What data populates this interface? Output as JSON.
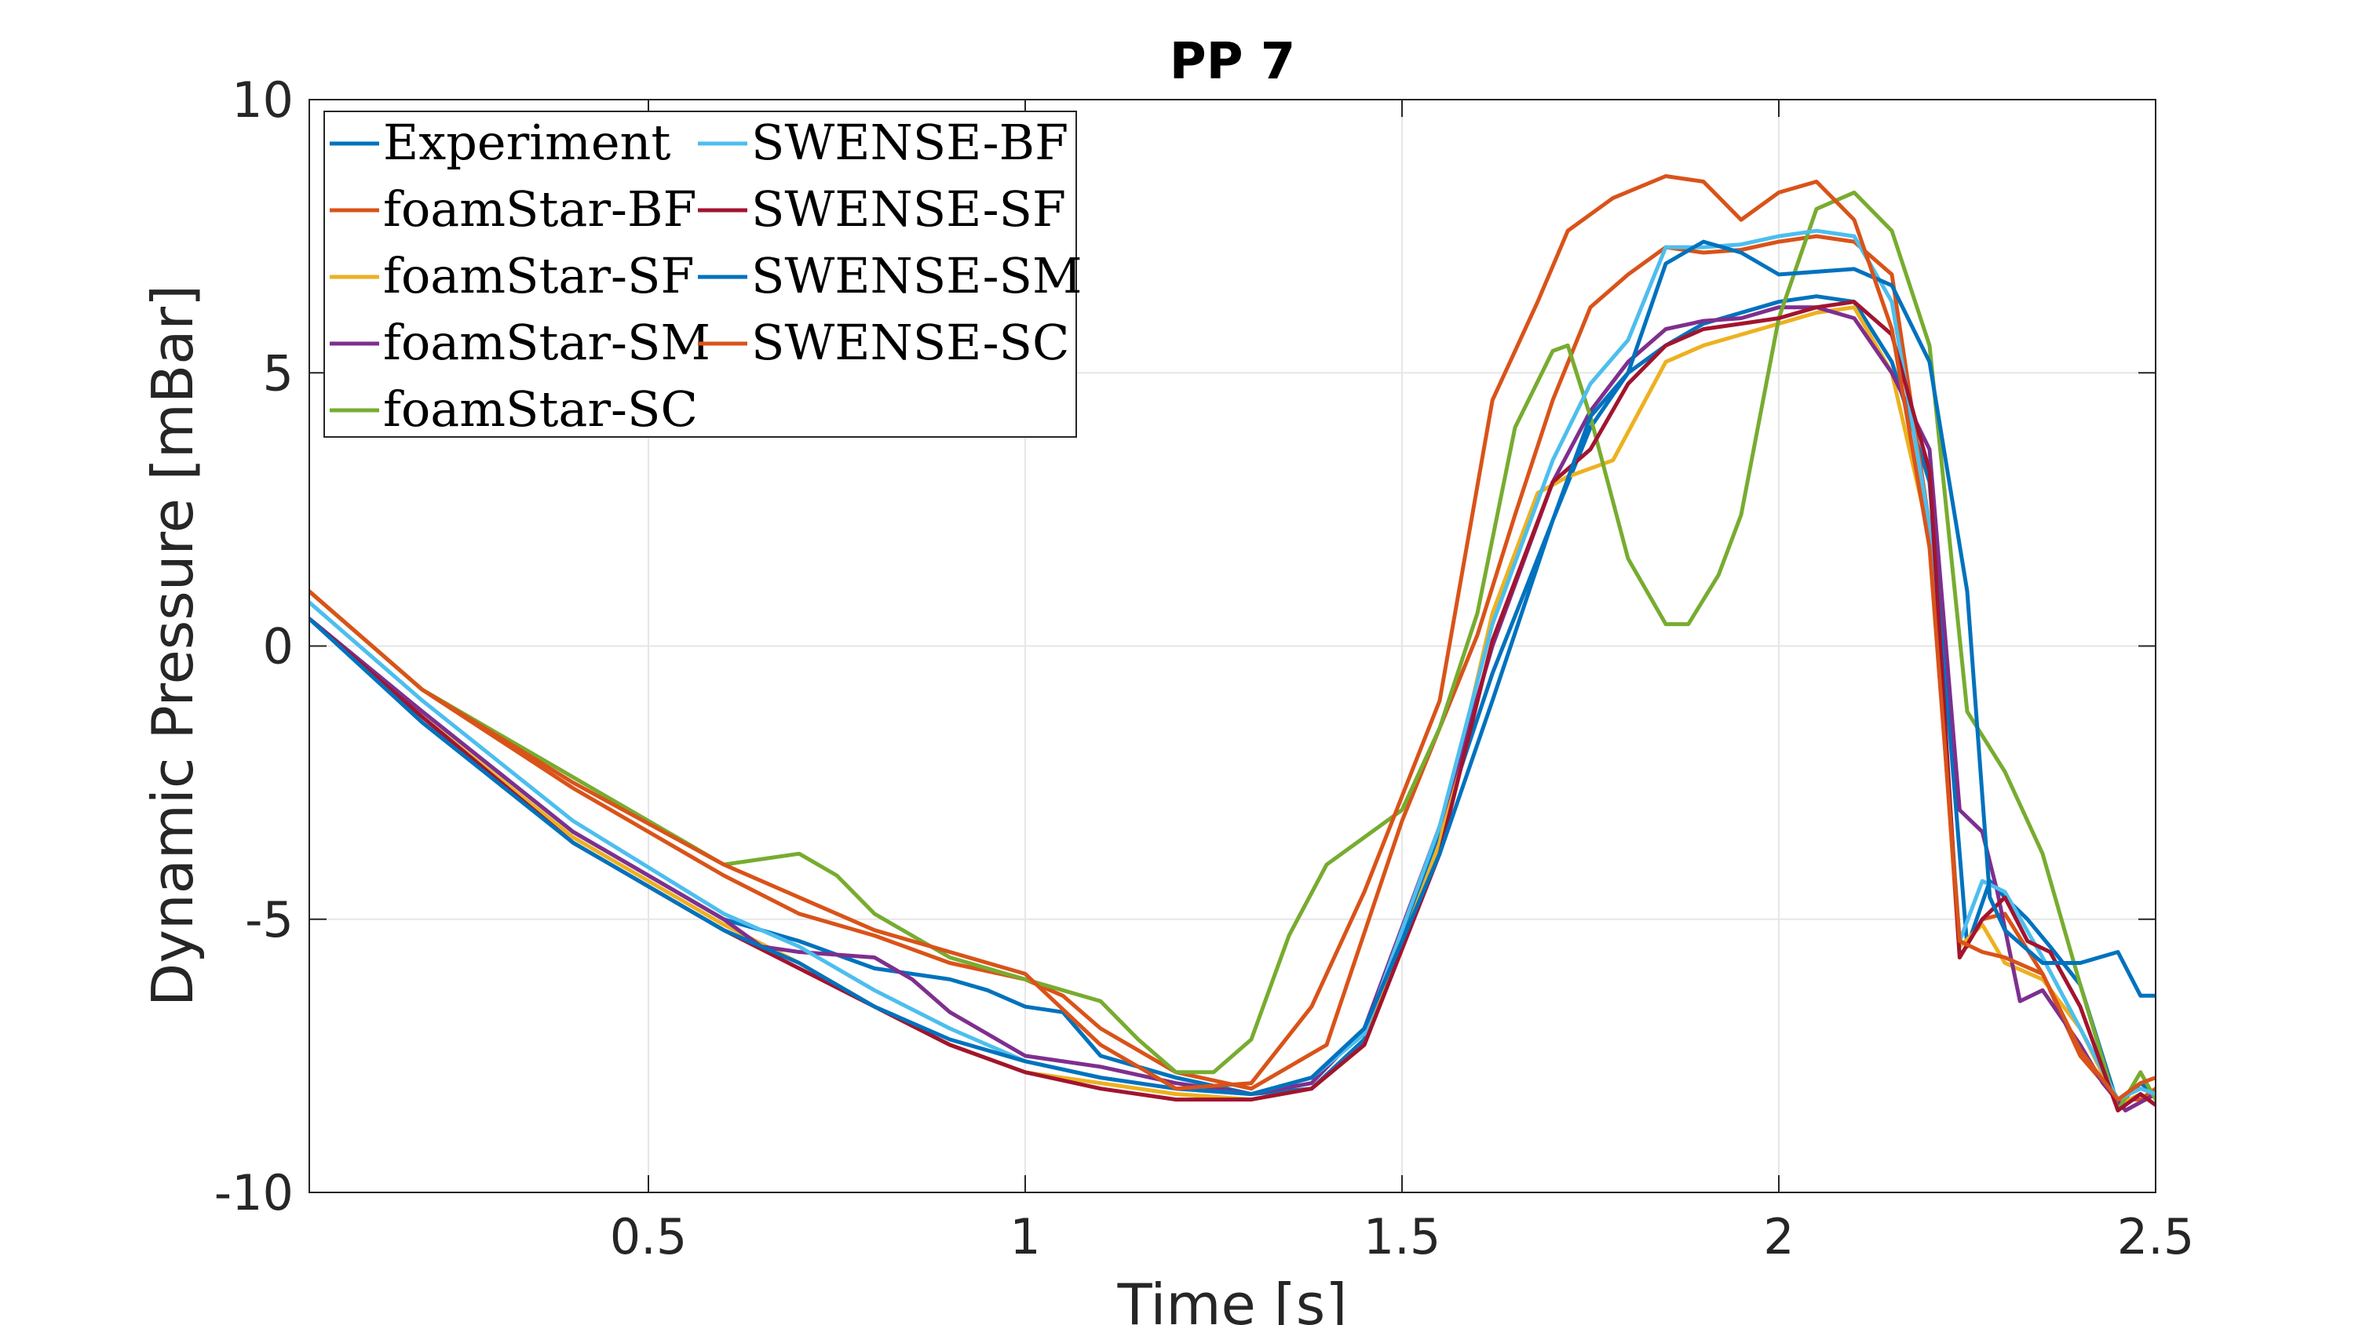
{
  "chart_data": {
    "type": "line",
    "title": "PP 7",
    "xlabel": "Time [s]",
    "ylabel": "Dynamic Pressure [mBar]",
    "xlim": [
      0.05,
      2.5
    ],
    "ylim": [
      -10,
      10
    ],
    "xticks": [
      0.5,
      1,
      1.5,
      2,
      2.5
    ],
    "xtick_labels": [
      "0.5",
      "1",
      "1.5",
      "2",
      "2.5"
    ],
    "yticks": [
      -10,
      -5,
      0,
      5,
      10
    ],
    "ytick_labels": [
      "-10",
      "-5",
      "0",
      "5",
      "10"
    ],
    "grid": true,
    "legend_position": "top-left",
    "legend_columns": 2,
    "series": [
      {
        "name": "Experiment",
        "color": "#0072BD",
        "x": [
          0.05,
          0.2,
          0.4,
          0.6,
          0.7,
          0.8,
          0.9,
          0.95,
          1.0,
          1.05,
          1.1,
          1.2,
          1.3,
          1.38,
          1.45,
          1.55,
          1.62,
          1.7,
          1.75,
          1.8,
          1.85,
          1.9,
          1.95,
          2.0,
          2.05,
          2.1,
          2.15,
          2.2,
          2.25,
          2.28,
          2.3,
          2.33,
          2.36,
          2.4,
          2.45,
          2.48,
          2.5
        ],
        "y": [
          0.5,
          -1.2,
          -3.4,
          -5.0,
          -5.4,
          -5.9,
          -6.1,
          -6.3,
          -6.6,
          -6.7,
          -7.5,
          -7.9,
          -8.2,
          -8.1,
          -7.2,
          -3.4,
          -0.5,
          2.3,
          4.0,
          5.0,
          5.5,
          5.9,
          6.1,
          6.3,
          6.4,
          6.3,
          5.2,
          3.0,
          -5.5,
          -4.3,
          -4.6,
          -5.0,
          -5.5,
          -6.2,
          -8.4,
          -8.0,
          -8.2
        ]
      },
      {
        "name": "foamStar-BF",
        "color": "#D95319",
        "x": [
          0.05,
          0.2,
          0.4,
          0.6,
          0.7,
          0.8,
          0.9,
          1.0,
          1.05,
          1.1,
          1.2,
          1.3,
          1.4,
          1.5,
          1.6,
          1.65,
          1.7,
          1.75,
          1.8,
          1.85,
          1.9,
          1.95,
          2.0,
          2.05,
          2.1,
          2.15,
          2.2,
          2.24,
          2.27,
          2.3,
          2.35,
          2.4,
          2.45,
          2.48,
          2.5
        ],
        "y": [
          1.0,
          -0.8,
          -2.6,
          -4.2,
          -4.9,
          -5.3,
          -5.8,
          -6.1,
          -6.4,
          -7.0,
          -7.8,
          -8.1,
          -7.3,
          -3.2,
          0.2,
          2.4,
          4.5,
          6.2,
          6.8,
          7.3,
          7.2,
          7.25,
          7.4,
          7.5,
          7.4,
          6.8,
          2.2,
          -5.7,
          -5.0,
          -4.9,
          -6.0,
          -7.5,
          -8.3,
          -8.3,
          -8.1
        ]
      },
      {
        "name": "foamStar-SF",
        "color": "#EDB120",
        "x": [
          0.05,
          0.2,
          0.4,
          0.6,
          0.7,
          0.8,
          0.9,
          1.0,
          1.1,
          1.2,
          1.3,
          1.38,
          1.45,
          1.55,
          1.62,
          1.68,
          1.72,
          1.78,
          1.85,
          1.9,
          1.95,
          2.0,
          2.05,
          2.1,
          2.15,
          2.2,
          2.24,
          2.27,
          2.3,
          2.35,
          2.4,
          2.45,
          2.48,
          2.5
        ],
        "y": [
          0.5,
          -1.3,
          -3.5,
          -5.1,
          -5.8,
          -6.6,
          -7.3,
          -7.8,
          -8.0,
          -8.2,
          -8.3,
          -8.1,
          -7.3,
          -3.6,
          0.6,
          2.8,
          3.1,
          3.4,
          5.2,
          5.5,
          5.7,
          5.9,
          6.1,
          6.2,
          5.0,
          2.0,
          -5.5,
          -5.1,
          -5.8,
          -6.1,
          -7.0,
          -8.4,
          -8.2,
          -8.4
        ]
      },
      {
        "name": "foamStar-SM",
        "color": "#7E2F8E",
        "x": [
          0.05,
          0.2,
          0.4,
          0.6,
          0.65,
          0.7,
          0.8,
          0.85,
          0.9,
          0.95,
          1.0,
          1.1,
          1.2,
          1.3,
          1.38,
          1.45,
          1.55,
          1.62,
          1.7,
          1.75,
          1.8,
          1.85,
          1.9,
          1.95,
          2.0,
          2.05,
          2.1,
          2.15,
          2.2,
          2.24,
          2.27,
          2.29,
          2.32,
          2.35,
          2.4,
          2.43,
          2.46,
          2.5
        ],
        "y": [
          0.5,
          -1.2,
          -3.4,
          -5.0,
          -5.5,
          -5.6,
          -5.7,
          -6.1,
          -6.7,
          -7.1,
          -7.5,
          -7.7,
          -8.0,
          -8.2,
          -8.0,
          -7.0,
          -3.3,
          0.0,
          3.0,
          4.3,
          5.2,
          5.8,
          5.95,
          6.0,
          6.2,
          6.2,
          6.0,
          5.0,
          3.6,
          -3.0,
          -3.4,
          -4.5,
          -6.5,
          -6.3,
          -7.3,
          -8.0,
          -8.5,
          -8.2
        ]
      },
      {
        "name": "foamStar-SC",
        "color": "#77AC30",
        "x": [
          0.05,
          0.2,
          0.4,
          0.6,
          0.7,
          0.75,
          0.8,
          0.9,
          1.0,
          1.05,
          1.1,
          1.15,
          1.2,
          1.25,
          1.3,
          1.35,
          1.4,
          1.45,
          1.5,
          1.55,
          1.6,
          1.65,
          1.7,
          1.72,
          1.75,
          1.8,
          1.85,
          1.88,
          1.92,
          1.95,
          2.0,
          2.05,
          2.1,
          2.15,
          2.2,
          2.25,
          2.3,
          2.35,
          2.4,
          2.45,
          2.48,
          2.5
        ],
        "y": [
          1.0,
          -0.8,
          -2.4,
          -4.0,
          -3.8,
          -4.2,
          -4.9,
          -5.7,
          -6.1,
          -6.3,
          -6.5,
          -7.2,
          -7.8,
          -7.8,
          -7.2,
          -5.3,
          -4.0,
          -3.5,
          -3.0,
          -1.5,
          0.6,
          4.0,
          5.4,
          5.5,
          4.2,
          1.6,
          0.4,
          0.4,
          1.3,
          2.4,
          6.0,
          8.0,
          8.3,
          7.6,
          5.5,
          -1.2,
          -2.3,
          -3.8,
          -6.2,
          -8.5,
          -7.8,
          -8.3
        ]
      },
      {
        "name": "SWENSE-BF",
        "color": "#4DBEEE",
        "x": [
          0.05,
          0.2,
          0.4,
          0.6,
          0.7,
          0.8,
          0.9,
          1.0,
          1.1,
          1.2,
          1.3,
          1.38,
          1.45,
          1.55,
          1.62,
          1.7,
          1.75,
          1.8,
          1.85,
          1.9,
          1.95,
          2.0,
          2.05,
          2.1,
          2.15,
          2.2,
          2.24,
          2.27,
          2.3,
          2.35,
          2.4,
          2.45,
          2.48,
          2.5
        ],
        "y": [
          0.8,
          -1.0,
          -3.2,
          -4.9,
          -5.5,
          -6.3,
          -7.0,
          -7.6,
          -7.9,
          -8.1,
          -8.2,
          -7.9,
          -7.1,
          -3.3,
          0.4,
          3.4,
          4.8,
          5.6,
          7.3,
          7.3,
          7.35,
          7.5,
          7.6,
          7.5,
          6.3,
          2.2,
          -5.4,
          -4.3,
          -4.5,
          -5.7,
          -7.0,
          -8.3,
          -8.1,
          -8.2
        ]
      },
      {
        "name": "SWENSE-SF",
        "color": "#A2142F",
        "x": [
          0.05,
          0.2,
          0.4,
          0.6,
          0.7,
          0.8,
          0.9,
          1.0,
          1.1,
          1.2,
          1.3,
          1.38,
          1.45,
          1.55,
          1.62,
          1.7,
          1.75,
          1.8,
          1.85,
          1.9,
          1.95,
          2.0,
          2.05,
          2.1,
          2.15,
          2.2,
          2.24,
          2.27,
          2.3,
          2.33,
          2.36,
          2.4,
          2.45,
          2.48,
          2.5
        ],
        "y": [
          0.5,
          -1.3,
          -3.6,
          -5.2,
          -5.9,
          -6.6,
          -7.3,
          -7.8,
          -8.1,
          -8.3,
          -8.3,
          -8.1,
          -7.3,
          -3.8,
          0.1,
          3.0,
          3.6,
          4.8,
          5.5,
          5.8,
          5.9,
          6.0,
          6.2,
          6.3,
          5.7,
          3.2,
          -5.7,
          -5.0,
          -4.6,
          -5.4,
          -5.6,
          -6.6,
          -8.5,
          -8.2,
          -8.4
        ]
      },
      {
        "name": "SWENSE-SM",
        "color": "#0072BD",
        "x": [
          0.05,
          0.2,
          0.4,
          0.6,
          0.7,
          0.8,
          0.9,
          1.0,
          1.1,
          1.2,
          1.3,
          1.38,
          1.45,
          1.55,
          1.62,
          1.7,
          1.75,
          1.8,
          1.85,
          1.9,
          1.95,
          2.0,
          2.05,
          2.1,
          2.15,
          2.2,
          2.25,
          2.28,
          2.3,
          2.35,
          2.4,
          2.45,
          2.48,
          2.5
        ],
        "y": [
          0.5,
          -1.4,
          -3.6,
          -5.2,
          -5.8,
          -6.6,
          -7.2,
          -7.6,
          -7.9,
          -8.1,
          -8.2,
          -7.9,
          -7.0,
          -3.8,
          -1.0,
          2.3,
          4.2,
          5.0,
          7.0,
          7.4,
          7.2,
          6.8,
          6.85,
          6.9,
          6.6,
          5.2,
          1.0,
          -4.6,
          -5.2,
          -5.8,
          -5.8,
          -5.6,
          -6.4,
          -6.4
        ]
      },
      {
        "name": "SWENSE-SC",
        "color": "#D95319",
        "x": [
          0.05,
          0.2,
          0.4,
          0.6,
          0.7,
          0.8,
          0.9,
          1.0,
          1.1,
          1.2,
          1.3,
          1.38,
          1.45,
          1.55,
          1.62,
          1.68,
          1.72,
          1.78,
          1.85,
          1.9,
          1.95,
          2.0,
          2.05,
          2.1,
          2.15,
          2.2,
          2.24,
          2.27,
          2.3,
          2.35,
          2.4,
          2.45,
          2.48,
          2.5
        ],
        "y": [
          1.0,
          -0.8,
          -2.5,
          -4.0,
          -4.6,
          -5.2,
          -5.6,
          -6.0,
          -7.3,
          -8.1,
          -8.0,
          -6.6,
          -4.5,
          -1.0,
          4.5,
          6.3,
          7.6,
          8.2,
          8.6,
          8.5,
          7.8,
          8.3,
          8.5,
          7.8,
          5.8,
          1.8,
          -5.4,
          -5.6,
          -5.7,
          -6.0,
          -7.4,
          -8.3,
          -8.0,
          -7.9
        ]
      }
    ]
  }
}
